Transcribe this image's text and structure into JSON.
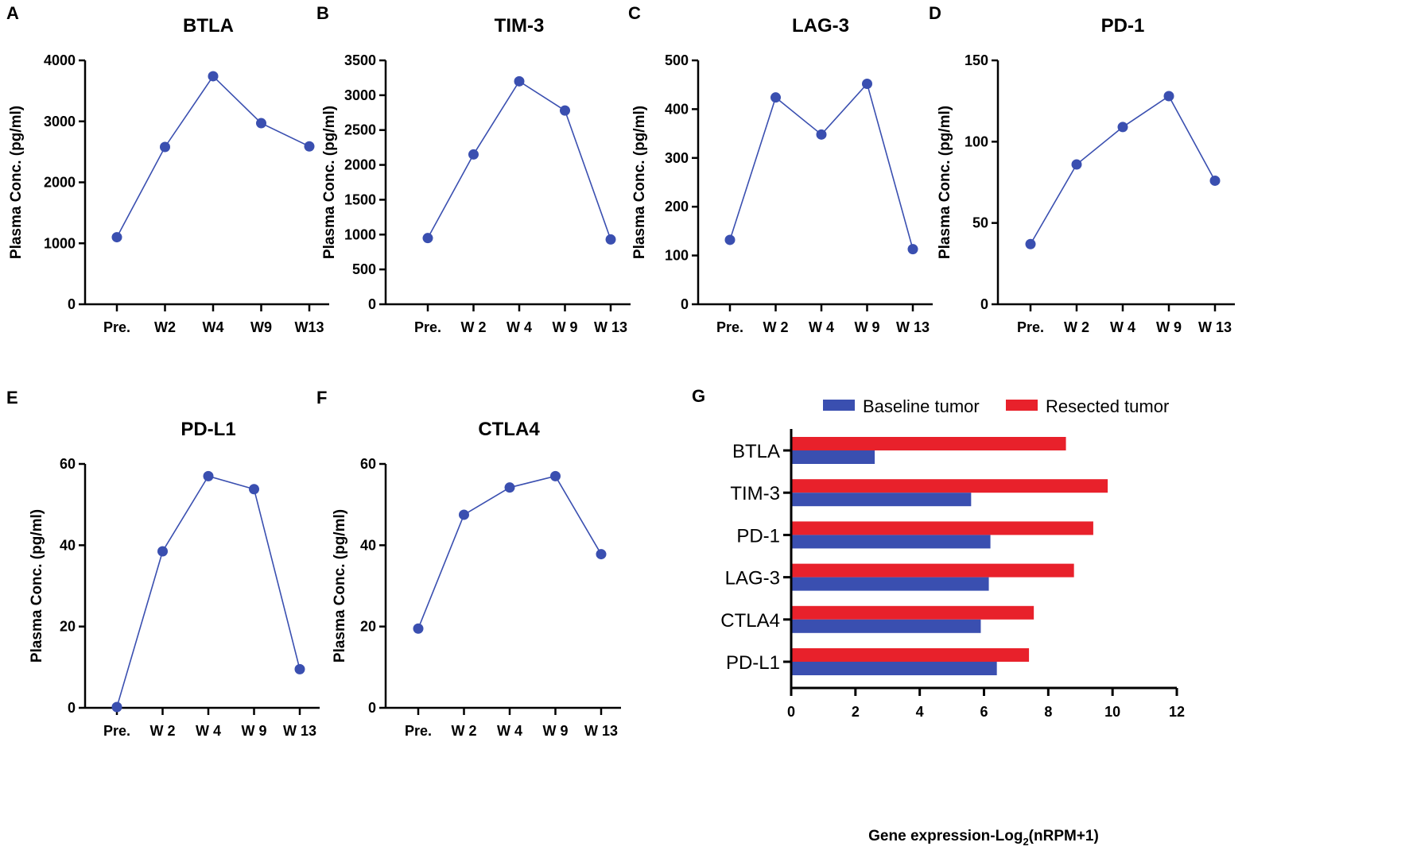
{
  "chart_data": [
    {
      "panel": "A",
      "type": "line",
      "title": "BTLA",
      "ylabel": "Plasma Conc. (pg/ml)",
      "xlabel": "",
      "categories": [
        "Pre.",
        "W2",
        "W4",
        "W9",
        "W13"
      ],
      "values": [
        1100,
        2580,
        3740,
        2970,
        2590
      ],
      "ylim": [
        0,
        4000
      ],
      "yticks": [
        0,
        1000,
        2000,
        3000,
        4000
      ],
      "color": "#3a4fb0"
    },
    {
      "panel": "B",
      "type": "line",
      "title": "TIM-3",
      "ylabel": "Plasma Conc. (pg/ml)",
      "xlabel": "",
      "categories": [
        "Pre.",
        "W 2",
        "W 4",
        "W 9",
        "W 13"
      ],
      "values": [
        950,
        2150,
        3200,
        2780,
        930
      ],
      "ylim": [
        0,
        3500
      ],
      "yticks": [
        0,
        500,
        1000,
        1500,
        2000,
        2500,
        3000,
        3500
      ],
      "color": "#3a4fb0"
    },
    {
      "panel": "C",
      "type": "line",
      "title": "LAG-3",
      "ylabel": "Plasma Conc. (pg/ml)",
      "xlabel": "",
      "categories": [
        "Pre.",
        "W 2",
        "W 4",
        "W 9",
        "W 13"
      ],
      "values": [
        132,
        424,
        348,
        452,
        113
      ],
      "ylim": [
        0,
        500
      ],
      "yticks": [
        0,
        100,
        200,
        300,
        400,
        500
      ],
      "color": "#3a4fb0"
    },
    {
      "panel": "D",
      "type": "line",
      "title": "PD-1",
      "ylabel": "Plasma Conc. (pg/ml)",
      "xlabel": "",
      "categories": [
        "Pre.",
        "W 2",
        "W 4",
        "W 9",
        "W 13"
      ],
      "values": [
        37,
        86,
        109,
        128,
        76
      ],
      "ylim": [
        0,
        150
      ],
      "yticks": [
        0,
        50,
        100,
        150
      ],
      "color": "#3a4fb0"
    },
    {
      "panel": "E",
      "type": "line",
      "title": "PD-L1",
      "ylabel": "Plasma Conc. (pg/ml)",
      "xlabel": "",
      "categories": [
        "Pre.",
        "W 2",
        "W 4",
        "W 9",
        "W 13"
      ],
      "values": [
        0.2,
        38.5,
        57,
        53.8,
        9.5
      ],
      "ylim": [
        0,
        60
      ],
      "yticks": [
        0,
        20,
        40,
        60
      ],
      "color": "#3a4fb0"
    },
    {
      "panel": "F",
      "type": "line",
      "title": "CTLA4",
      "ylabel": "Plasma Conc. (pg/ml)",
      "xlabel": "",
      "categories": [
        "Pre.",
        "W 2",
        "W 4",
        "W 9",
        "W 13"
      ],
      "values": [
        19.5,
        47.5,
        54.2,
        57,
        37.8
      ],
      "ylim": [
        0,
        60
      ],
      "yticks": [
        0,
        20,
        40,
        60
      ],
      "color": "#3a4fb0"
    },
    {
      "panel": "G",
      "type": "bar",
      "orientation": "horizontal",
      "title": "",
      "xlabel": "Gene expression-Log2(nRPM+1)",
      "xlabel_parts": {
        "pre": "Gene expression-Log",
        "sub": "2",
        "post": "(nRPM+1)"
      },
      "ylabel": "",
      "categories": [
        "BTLA",
        "TIM-3",
        "PD-1",
        "LAG-3",
        "CTLA4",
        "PD-L1"
      ],
      "series": [
        {
          "name": "Baseline tumor",
          "values": [
            2.6,
            5.6,
            6.2,
            6.15,
            5.9,
            6.4
          ],
          "color": "#3a4fb0"
        },
        {
          "name": "Resected tumor",
          "values": [
            8.55,
            9.85,
            9.4,
            8.8,
            7.55,
            7.4
          ],
          "color": "#e8212b"
        }
      ],
      "xlim": [
        0,
        12
      ],
      "xticks": [
        0,
        2,
        4,
        6,
        8,
        10,
        12
      ]
    }
  ]
}
